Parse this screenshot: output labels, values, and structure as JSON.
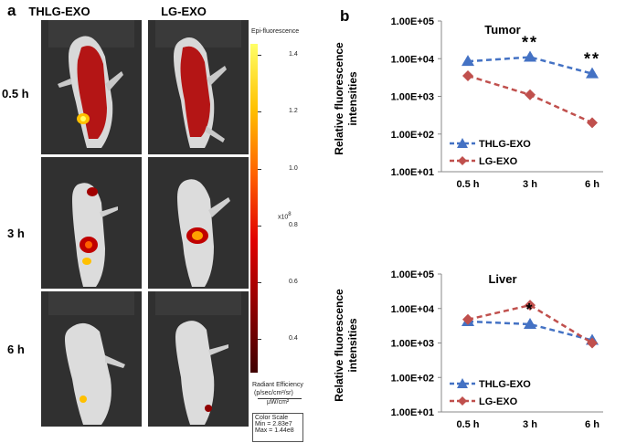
{
  "panel_a": {
    "letter": "a",
    "columns": [
      "THLG-EXO",
      "LG-EXO"
    ],
    "rows": [
      "0.5 h",
      "3 h",
      "6 h"
    ],
    "colorbar": {
      "title": "Epi-fluorescence",
      "ticks": [
        "1.4",
        "1.2",
        "1.0",
        "0.8",
        "0.6",
        "0.4"
      ],
      "tick_values": [
        1.4,
        1.2,
        1.0,
        0.8,
        0.6,
        0.4
      ],
      "range": [
        0.28,
        1.44
      ],
      "multiplier": "x10",
      "multiplier_exp": "8",
      "unit_label": "Radiant Efficiency",
      "unit_num": "(p/sec/cm²/sr)",
      "unit_den": "µW/cm²",
      "scale_title": "Color Scale",
      "scale_min": "Min = 2.83e7",
      "scale_max": "Max = 1.44e8",
      "colors": [
        "#ffff66",
        "#ffc000",
        "#ff6000",
        "#e00000",
        "#900000",
        "#400000"
      ]
    }
  },
  "panel_b": {
    "letter": "b",
    "ylabel_line1": "Relative fluorescence",
    "ylabel_line2": "intensities"
  },
  "chart_data": [
    {
      "type": "line",
      "title": "Tumor",
      "categories": [
        "0.5 h",
        "3 h",
        "6 h"
      ],
      "ylabel": "Relative fluorescence intensities",
      "yscale": "log",
      "ylim": [
        10,
        100000
      ],
      "yticks": [
        "1.00E+05",
        "1.00E+04",
        "1.00E+03",
        "1.00E+02",
        "1.00E+01"
      ],
      "ytick_values": [
        100000,
        10000,
        1000,
        100,
        10
      ],
      "series": [
        {
          "name": "THLG-EXO",
          "values": [
            8500,
            11000,
            4000
          ],
          "color": "#4472c4",
          "marker": "triangle"
        },
        {
          "name": "LG-EXO",
          "values": [
            3500,
            1100,
            200
          ],
          "color": "#c0504d",
          "marker": "diamond"
        }
      ],
      "annotations": [
        {
          "category": "3 h",
          "text": "**"
        },
        {
          "category": "6 h",
          "text": "**"
        }
      ],
      "legend": "bottom-left"
    },
    {
      "type": "line",
      "title": "Liver",
      "categories": [
        "0.5 h",
        "3 h",
        "6 h"
      ],
      "ylabel": "Relative fluorescence intensities",
      "yscale": "log",
      "ylim": [
        10,
        100000
      ],
      "yticks": [
        "1.00E+05",
        "1.00E+04",
        "1.00E+03",
        "1.00E+02",
        "1.00E+01"
      ],
      "ytick_values": [
        100000,
        10000,
        1000,
        100,
        10
      ],
      "series": [
        {
          "name": "THLG-EXO",
          "values": [
            4200,
            3500,
            1200
          ],
          "color": "#4472c4",
          "marker": "triangle"
        },
        {
          "name": "LG-EXO",
          "values": [
            4800,
            12500,
            1000
          ],
          "color": "#c0504d",
          "marker": "diamond"
        }
      ],
      "annotations": [
        {
          "category": "3 h",
          "text": "*"
        }
      ],
      "legend": "bottom-left"
    }
  ]
}
